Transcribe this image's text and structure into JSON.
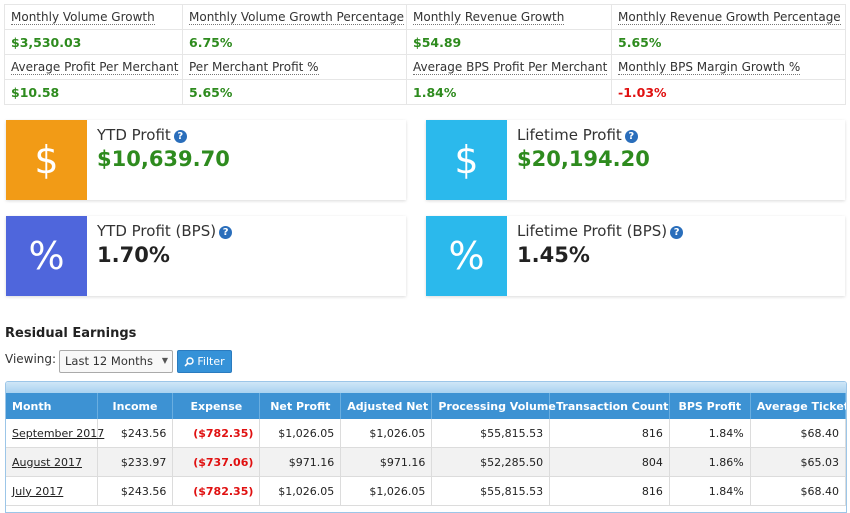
{
  "metrics": {
    "row1_labels": [
      "Monthly Volume Growth",
      "Monthly Volume Growth Percentage",
      "Monthly Revenue Growth",
      "Monthly Revenue Growth Percentage"
    ],
    "row1_values": [
      "$3,530.03",
      "6.75%",
      "$54.89",
      "5.65%"
    ],
    "row2_labels": [
      "Average Profit Per Merchant",
      "Per Merchant Profit %",
      "Average BPS Profit Per Merchant",
      "Monthly BPS Margin Growth %"
    ],
    "row2_values": [
      "$10.58",
      "5.65%",
      "1.84%",
      "-1.03%"
    ]
  },
  "cards": {
    "ytd_profit": {
      "icon": "$",
      "title": "YTD Profit",
      "value": "$10,639.70",
      "color": "#f29b16"
    },
    "lifetime_profit": {
      "icon": "$",
      "title": "Lifetime Profit",
      "value": "$20,194.20",
      "color": "#2bb9ec"
    },
    "ytd_bps": {
      "icon": "%",
      "title": "YTD Profit (BPS)",
      "value": "1.70%",
      "color": "#4f66dc"
    },
    "lifetime_bps": {
      "icon": "%",
      "title": "Lifetime Profit (BPS)",
      "value": "1.45%",
      "color": "#2bb9ec"
    },
    "help_glyph": "?"
  },
  "residual": {
    "title": "Residual Earnings",
    "viewing_label": "Viewing:",
    "period_selected": "Last 12 Months",
    "filter_label": "Filter"
  },
  "table": {
    "headers": [
      "Month",
      "Income",
      "Expense",
      "Net Profit",
      "Adjusted Net",
      "Processing Volume",
      "Transaction Count",
      "BPS Profit",
      "Average Ticket"
    ],
    "rows": [
      [
        "September 2017",
        "$243.56",
        "($782.35)",
        "$1,026.05",
        "$1,026.05",
        "$55,815.53",
        "816",
        "1.84%",
        "$68.40"
      ],
      [
        "August 2017",
        "$233.97",
        "($737.06)",
        "$971.16",
        "$971.16",
        "$52,285.50",
        "804",
        "1.86%",
        "$65.03"
      ],
      [
        "July 2017",
        "$243.56",
        "($782.35)",
        "$1,026.05",
        "$1,026.05",
        "$55,815.53",
        "816",
        "1.84%",
        "$68.40"
      ]
    ]
  }
}
